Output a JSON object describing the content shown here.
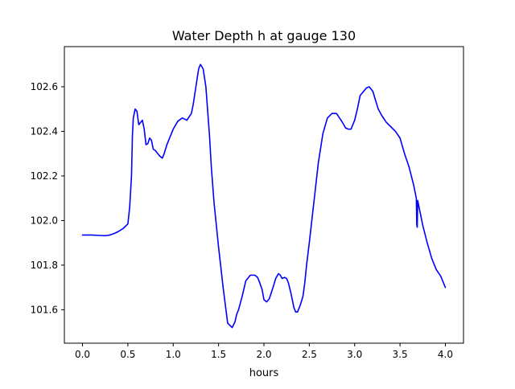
{
  "chart_data": {
    "type": "line",
    "title": "Water Depth h at gauge 130",
    "xlabel": "hours",
    "ylabel": "",
    "xlim": [
      -0.2,
      4.2
    ],
    "ylim": [
      101.45,
      102.78
    ],
    "xticks": [
      0.0,
      0.5,
      1.0,
      1.5,
      2.0,
      2.5,
      3.0,
      3.5,
      4.0
    ],
    "xtick_labels": [
      "0.0",
      "0.5",
      "1.0",
      "1.5",
      "2.0",
      "2.5",
      "3.0",
      "3.5",
      "4.0"
    ],
    "yticks": [
      101.6,
      101.8,
      102.0,
      102.2,
      102.4,
      102.6
    ],
    "ytick_labels": [
      "101.6",
      "101.8",
      "102.0",
      "102.2",
      "102.4",
      "102.6"
    ],
    "grid": false,
    "legend": "none",
    "series": [
      {
        "color": "#0000ff",
        "x": [
          0.0,
          0.1,
          0.2,
          0.25,
          0.3,
          0.35,
          0.4,
          0.45,
          0.5,
          0.52,
          0.54,
          0.55,
          0.555,
          0.56,
          0.58,
          0.6,
          0.62,
          0.64,
          0.66,
          0.68,
          0.7,
          0.72,
          0.74,
          0.76,
          0.78,
          0.8,
          0.82,
          0.85,
          0.88,
          0.9,
          0.93,
          0.96,
          0.98,
          1.0,
          1.05,
          1.1,
          1.15,
          1.2,
          1.22,
          1.25,
          1.28,
          1.3,
          1.33,
          1.36,
          1.38,
          1.4,
          1.42,
          1.45,
          1.5,
          1.55,
          1.6,
          1.65,
          1.68,
          1.7,
          1.72,
          1.74,
          1.76,
          1.78,
          1.8,
          1.85,
          1.9,
          1.93,
          1.95,
          1.98,
          2.0,
          2.03,
          2.06,
          2.1,
          2.13,
          2.16,
          2.18,
          2.2,
          2.23,
          2.25,
          2.27,
          2.3,
          2.33,
          2.35,
          2.37,
          2.4,
          2.43,
          2.45,
          2.47,
          2.5,
          2.55,
          2.6,
          2.65,
          2.7,
          2.75,
          2.8,
          2.85,
          2.88,
          2.9,
          2.93,
          2.96,
          3.0,
          3.03,
          3.06,
          3.1,
          3.13,
          3.16,
          3.2,
          3.23,
          3.26,
          3.3,
          3.35,
          3.4,
          3.45,
          3.5,
          3.55,
          3.6,
          3.65,
          3.68,
          3.685,
          3.69,
          3.695,
          3.7,
          3.72,
          3.75,
          3.8,
          3.85,
          3.9,
          3.95,
          4.0
        ],
        "y": [
          101.935,
          101.935,
          101.933,
          101.932,
          101.935,
          101.942,
          101.952,
          101.965,
          101.985,
          102.06,
          102.2,
          102.38,
          102.42,
          102.46,
          102.5,
          102.49,
          102.43,
          102.44,
          102.45,
          102.41,
          102.34,
          102.345,
          102.37,
          102.36,
          102.32,
          102.315,
          102.305,
          102.29,
          102.28,
          102.3,
          102.34,
          102.37,
          102.39,
          102.41,
          102.445,
          102.46,
          102.45,
          102.48,
          102.52,
          102.6,
          102.68,
          102.7,
          102.68,
          102.6,
          102.49,
          102.38,
          102.24,
          102.08,
          101.88,
          101.7,
          101.54,
          101.52,
          101.545,
          101.58,
          101.6,
          101.63,
          101.66,
          101.695,
          101.73,
          101.755,
          101.755,
          101.745,
          101.725,
          101.69,
          101.645,
          101.635,
          101.65,
          101.7,
          101.74,
          101.762,
          101.755,
          101.74,
          101.745,
          101.74,
          101.72,
          101.67,
          101.61,
          101.59,
          101.59,
          101.62,
          101.66,
          101.72,
          101.8,
          101.9,
          102.08,
          102.26,
          102.39,
          102.46,
          102.48,
          102.48,
          102.45,
          102.43,
          102.415,
          102.41,
          102.41,
          102.45,
          102.5,
          102.56,
          102.58,
          102.595,
          102.6,
          102.58,
          102.54,
          102.5,
          102.47,
          102.44,
          102.42,
          102.4,
          102.37,
          102.3,
          102.24,
          102.16,
          102.1,
          101.98,
          101.97,
          102.09,
          102.08,
          102.04,
          101.98,
          101.9,
          101.83,
          101.78,
          101.75,
          101.7
        ]
      }
    ]
  }
}
